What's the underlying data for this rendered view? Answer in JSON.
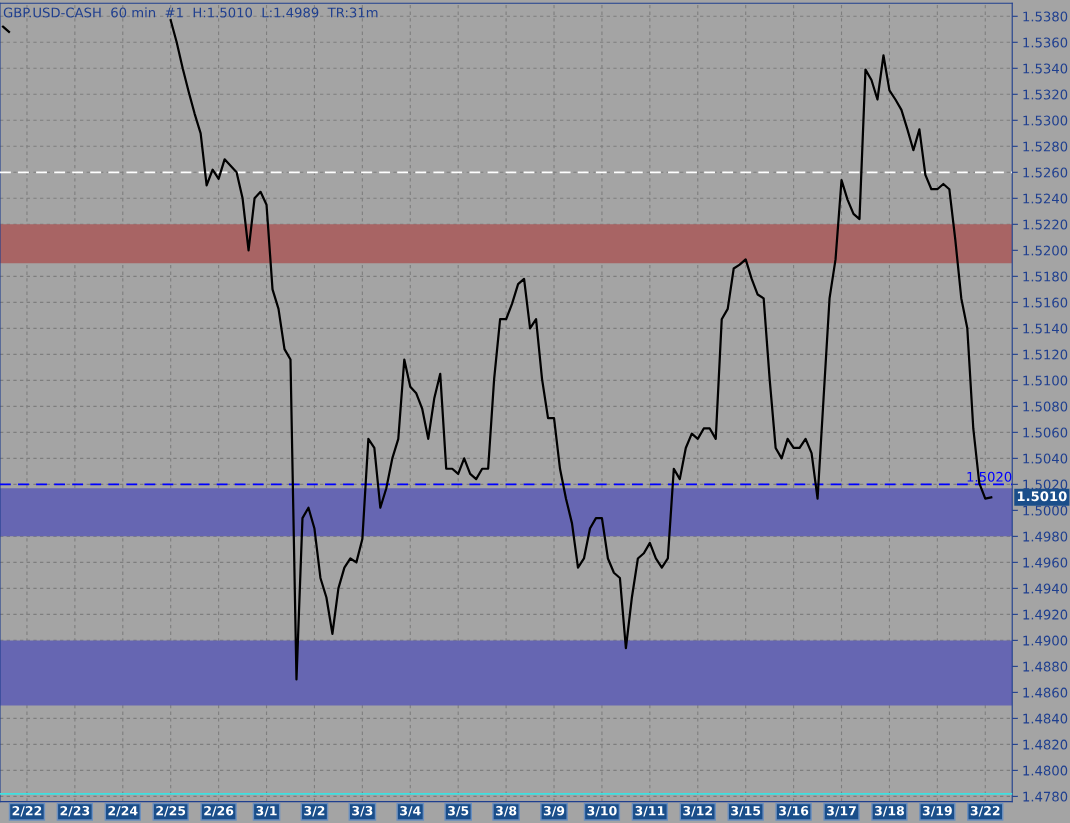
{
  "chart_data": {
    "type": "line",
    "title": "GBP.USD-CASH  60 min  #1  H:1.5010  L:1.4989  TR:31m",
    "categories": [
      null,
      null,
      null,
      null,
      "2/22",
      null,
      null,
      null,
      null,
      null,
      null,
      null,
      "2/23",
      null,
      null,
      null,
      null,
      null,
      null,
      null,
      "2/24",
      null,
      null,
      null,
      null,
      null,
      null,
      null,
      "2/25",
      null,
      null,
      null,
      null,
      null,
      null,
      null,
      "2/26",
      null,
      null,
      null,
      null,
      null,
      null,
      null,
      "3/1",
      null,
      null,
      null,
      null,
      null,
      null,
      null,
      "3/2",
      null,
      null,
      null,
      null,
      null,
      null,
      null,
      "3/3",
      null,
      null,
      null,
      null,
      null,
      null,
      null,
      "3/4",
      null,
      null,
      null,
      null,
      null,
      null,
      null,
      "3/5",
      null,
      null,
      null,
      null,
      null,
      null,
      null,
      "3/8",
      null,
      null,
      null,
      null,
      null,
      null,
      null,
      "3/9",
      null,
      null,
      null,
      null,
      null,
      null,
      null,
      "3/10",
      null,
      null,
      null,
      null,
      null,
      null,
      null,
      "3/11",
      null,
      null,
      null,
      null,
      null,
      null,
      null,
      "3/12",
      null,
      null,
      null,
      null,
      null,
      null,
      null,
      "3/15",
      null,
      null,
      null,
      null,
      null,
      null,
      null,
      "3/16",
      null,
      null,
      null,
      null,
      null,
      null,
      null,
      "3/17",
      null,
      null,
      null,
      null,
      null,
      null,
      null,
      "3/18",
      null,
      null,
      null,
      null,
      null,
      null,
      null,
      "3/19",
      null,
      null,
      null,
      null,
      null,
      null,
      null,
      "3/22",
      null,
      null,
      null,
      null
    ],
    "series": [
      {
        "color": "#000000",
        "values": [
          1.5372,
          1.5368,
          null,
          null,
          null,
          null,
          null,
          null,
          null,
          null,
          null,
          null,
          null,
          null,
          null,
          null,
          null,
          null,
          null,
          null,
          null,
          null,
          null,
          null,
          null,
          null,
          null,
          null,
          1.5377,
          1.536,
          1.534,
          1.5322,
          1.5305,
          1.529,
          1.525,
          1.5262,
          1.5255,
          1.527,
          1.5265,
          1.526,
          1.524,
          1.52,
          1.524,
          1.5245,
          1.5235,
          1.517,
          1.5155,
          1.5124,
          1.5116,
          1.487,
          1.4994,
          1.5002,
          1.4986,
          1.4948,
          1.4933,
          1.4905,
          1.494,
          1.4956,
          1.4963,
          1.496,
          1.4978,
          1.5055,
          1.5048,
          1.5002,
          1.5017,
          1.504,
          1.5055,
          1.5116,
          1.5095,
          1.509,
          1.5078,
          1.5055,
          1.5086,
          1.5105,
          1.5032,
          1.5032,
          1.5028,
          1.504,
          1.5028,
          1.5024,
          1.5032,
          1.5032,
          1.5101,
          1.5147,
          1.5147,
          1.5159,
          1.5174,
          1.5178,
          1.514,
          1.5147,
          1.5101,
          1.5071,
          1.5071,
          1.5032,
          1.5009,
          1.499,
          1.4956,
          1.4963,
          1.4986,
          1.4994,
          1.4994,
          1.4963,
          1.4952,
          1.4948,
          1.4894,
          1.4933,
          1.4963,
          1.4967,
          1.4975,
          1.4963,
          1.4956,
          1.4963,
          1.5032,
          1.5024,
          1.5048,
          1.5059,
          1.5055,
          1.5063,
          1.5063,
          1.5055,
          1.5147,
          1.5155,
          1.5186,
          1.5189,
          1.5193,
          1.5178,
          1.5166,
          1.5163,
          1.5101,
          1.5048,
          1.504,
          1.5055,
          1.5048,
          1.5048,
          1.5055,
          1.5044,
          1.5009,
          1.5086,
          1.5163,
          1.5193,
          1.5254,
          1.5239,
          1.5228,
          1.5224,
          1.5339,
          1.5331,
          1.5316,
          1.535,
          1.5323,
          1.5316,
          1.5308,
          1.5293,
          1.5277,
          1.5293,
          1.5258,
          1.5247,
          1.5247,
          1.5251,
          1.5247,
          1.5208,
          1.5163,
          1.514,
          1.5063,
          1.5021,
          1.5009,
          1.501,
          null,
          null,
          null
        ]
      }
    ],
    "ylim": [
      1.4776,
      1.539
    ],
    "yticks": [
      {
        "value": 1.478,
        "label": "1.4780"
      },
      {
        "value": 1.48,
        "label": "1.4800"
      },
      {
        "value": 1.482,
        "label": "1.4820"
      },
      {
        "value": 1.484,
        "label": "1.4840"
      },
      {
        "value": 1.486,
        "label": "1.4860"
      },
      {
        "value": 1.488,
        "label": "1.4880"
      },
      {
        "value": 1.49,
        "label": "1.4900"
      },
      {
        "value": 1.492,
        "label": "1.4920"
      },
      {
        "value": 1.494,
        "label": "1.4940"
      },
      {
        "value": 1.496,
        "label": "1.4960"
      },
      {
        "value": 1.498,
        "label": "1.4980"
      },
      {
        "value": 1.5,
        "label": "1.5000"
      },
      {
        "value": 1.502,
        "label": "1.5020"
      },
      {
        "value": 1.504,
        "label": "1.5040"
      },
      {
        "value": 1.506,
        "label": "1.5060"
      },
      {
        "value": 1.508,
        "label": "1.5080"
      },
      {
        "value": 1.51,
        "label": "1.5100"
      },
      {
        "value": 1.512,
        "label": "1.5120"
      },
      {
        "value": 1.514,
        "label": "1.5140"
      },
      {
        "value": 1.516,
        "label": "1.5160"
      },
      {
        "value": 1.518,
        "label": "1.5180"
      },
      {
        "value": 1.52,
        "label": "1.5200"
      },
      {
        "value": 1.522,
        "label": "1.5220"
      },
      {
        "value": 1.524,
        "label": "1.5240"
      },
      {
        "value": 1.526,
        "label": "1.5260"
      },
      {
        "value": 1.528,
        "label": "1.5280"
      },
      {
        "value": 1.53,
        "label": "1.5300"
      },
      {
        "value": 1.532,
        "label": "1.5320"
      },
      {
        "value": 1.534,
        "label": "1.5340"
      },
      {
        "value": 1.536,
        "label": "1.5360"
      },
      {
        "value": 1.538,
        "label": "1.5380"
      }
    ],
    "bands": [
      {
        "axis": "y",
        "from": 1.519,
        "to": 1.522,
        "color": "#a86464"
      },
      {
        "axis": "y",
        "from": 1.498,
        "to": 1.5017,
        "color": "#6666b2"
      },
      {
        "axis": "y",
        "from": 1.485,
        "to": 1.49,
        "color": "#6666b2"
      }
    ],
    "ref_lines": [
      {
        "axis": "y",
        "value": 1.502,
        "label": "1.5020",
        "color": "#0000ff",
        "line_style": "dashed"
      },
      {
        "axis": "y",
        "value": 1.526,
        "color": "#ffffff",
        "line_style": "dashed"
      },
      {
        "axis": "y",
        "value": 1.4782,
        "color": "#40e0e0",
        "line_style": "solid"
      }
    ],
    "annotations": [
      "1.5010"
    ],
    "grid": true,
    "legend": false,
    "line_style": "solid",
    "marker": "none"
  }
}
